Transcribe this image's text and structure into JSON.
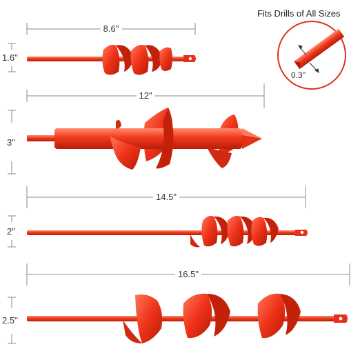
{
  "header": {
    "fits_text": "Fits Drills of All Sizes"
  },
  "callout": {
    "shank_label": "0.3''"
  },
  "augers": [
    {
      "length": "8.6\"",
      "diameter": "1.6\""
    },
    {
      "length": "12\"",
      "diameter": "3\""
    },
    {
      "length": "14.5\"",
      "diameter": "2\""
    },
    {
      "length": "16.5\"",
      "diameter": "2.5\""
    }
  ],
  "colors": {
    "auger": "#f0391d",
    "auger_dark": "#c4210b",
    "auger_light": "#ff7a5c",
    "callout_ring": "#d93222",
    "dimension_line": "#888888"
  }
}
